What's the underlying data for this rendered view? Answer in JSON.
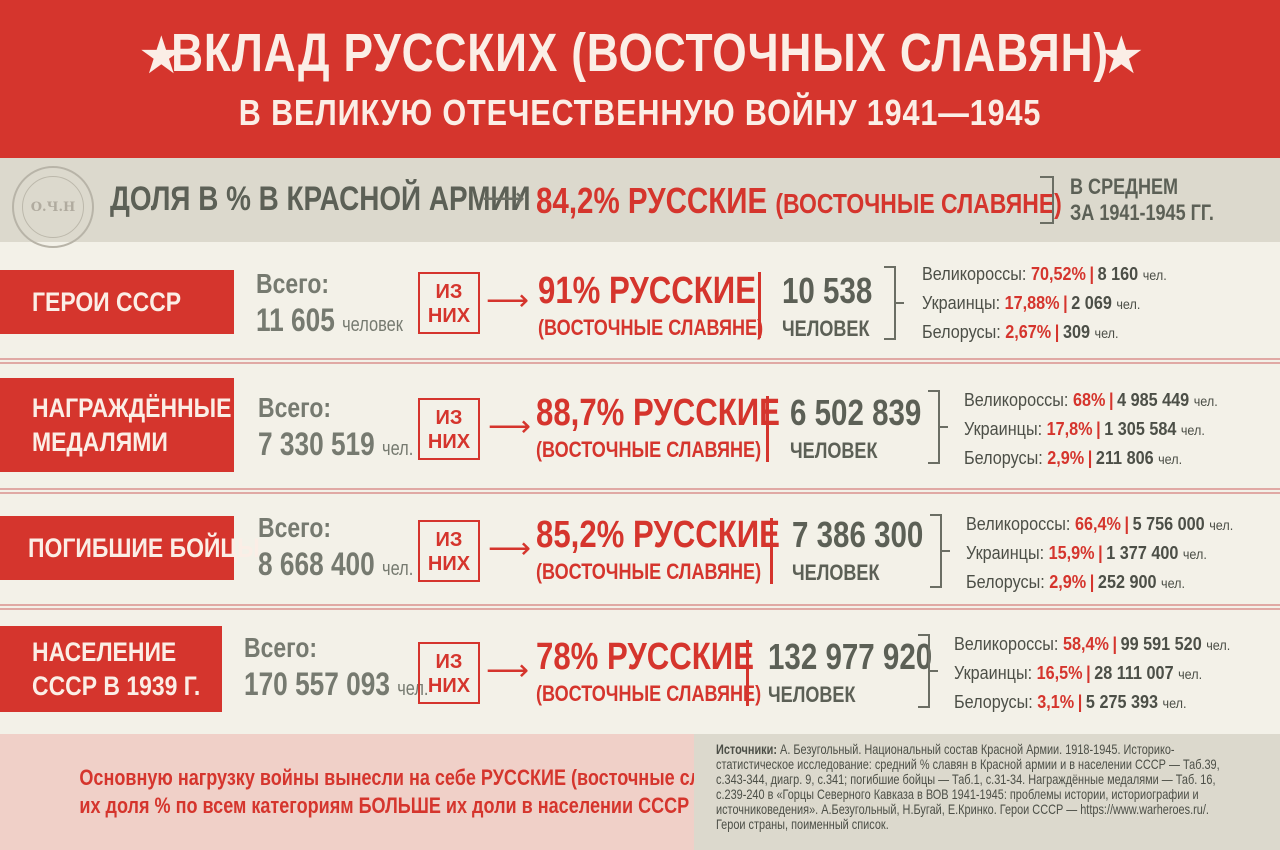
{
  "header": {
    "title_line1": "ВКЛАД РУССКИХ (ВОСТОЧНЫХ СЛАВЯН)",
    "title_line2": "В ВЕЛИКУЮ ОТЕЧЕСТВЕННУЮ ВОЙНУ 1941—1945",
    "star": "★"
  },
  "share": {
    "seal_text": "О.Ч.Н",
    "label": "ДОЛЯ В % В КРАСНОЙ АРМИИ",
    "arrow": "⟶",
    "value": "84,2% РУССКИЕ",
    "value_sub": "(ВОСТОЧНЫЕ СЛАВЯНЕ)",
    "note_line1": "В СРЕДНЕМ",
    "note_line2": "ЗА 1941-1945 ГГ."
  },
  "rows": [
    {
      "category": "ГЕРОИ СССР",
      "total_label": "Всего:",
      "total_value": "11 605",
      "total_unit": "человек",
      "of_them": "ИЗ НИХ",
      "arrow": "⟶",
      "pct": "91% РУССКИЕ",
      "pct_sub": "(ВОСТОЧНЫЕ СЛАВЯНЕ)",
      "count": "10 538",
      "count_unit": "ЧЕЛОВЕК",
      "breakdown": [
        {
          "name": "Великороссы:",
          "pct": "70,52%",
          "sep": "|",
          "num": "8 160",
          "unit": "чел."
        },
        {
          "name": "Украинцы:",
          "pct": "17,88%",
          "sep": "|",
          "num": "2 069",
          "unit": "чел."
        },
        {
          "name": "Белорусы:",
          "pct": "2,67%",
          "sep": "|",
          "num": "309",
          "unit": "чел."
        }
      ]
    },
    {
      "category_line1": "НАГРАЖДЁННЫЕ",
      "category_line2": "МЕДАЛЯМИ",
      "total_label": "Всего:",
      "total_value": "7 330 519",
      "total_unit": "чел.",
      "of_them": "ИЗ НИХ",
      "arrow": "⟶",
      "pct": "88,7% РУССКИЕ",
      "pct_sub": "(ВОСТОЧНЫЕ СЛАВЯНЕ)",
      "count": "6 502 839",
      "count_unit": "ЧЕЛОВЕК",
      "breakdown": [
        {
          "name": "Великороссы:",
          "pct": "68%",
          "sep": "|",
          "num": "4 985 449",
          "unit": "чел."
        },
        {
          "name": "Украинцы:",
          "pct": "17,8%",
          "sep": "|",
          "num": "1 305 584",
          "unit": "чел."
        },
        {
          "name": "Белорусы:",
          "pct": "2,9%",
          "sep": "|",
          "num": "211 806",
          "unit": "чел."
        }
      ]
    },
    {
      "category": "ПОГИБШИЕ БОЙЦЫ",
      "total_label": "Всего:",
      "total_value": "8 668 400",
      "total_unit": "чел.",
      "of_them": "ИЗ НИХ",
      "arrow": "⟶",
      "pct": "85,2% РУССКИЕ",
      "pct_sub": "(ВОСТОЧНЫЕ СЛАВЯНЕ)",
      "count": "7 386 300",
      "count_unit": "ЧЕЛОВЕК",
      "breakdown": [
        {
          "name": "Великороссы:",
          "pct": "66,4%",
          "sep": "|",
          "num": "5 756 000",
          "unit": "чел."
        },
        {
          "name": "Украинцы:",
          "pct": "15,9%",
          "sep": "|",
          "num": "1 377 400",
          "unit": "чел."
        },
        {
          "name": "Белорусы:",
          "pct": "2,9%",
          "sep": "|",
          "num": "252 900",
          "unit": "чел."
        }
      ]
    },
    {
      "category_line1": "НАСЕЛЕНИЕ",
      "category_line2": "СССР В 1939 Г.",
      "total_label": "Всего:",
      "total_value": "170 557 093",
      "total_unit": "чел.",
      "of_them": "ИЗ НИХ",
      "arrow": "⟶",
      "pct": "78% РУССКИЕ",
      "pct_sub": "(ВОСТОЧНЫЕ СЛАВЯНЕ)",
      "count": "132 977 920",
      "count_unit": "ЧЕЛОВЕК",
      "breakdown": [
        {
          "name": "Великороссы:",
          "pct": "58,4%",
          "sep": "|",
          "num": "99 591 520",
          "unit": "чел."
        },
        {
          "name": "Украинцы:",
          "pct": "16,5%",
          "sep": "|",
          "num": "28 111 007",
          "unit": "чел."
        },
        {
          "name": "Белорусы:",
          "pct": "3,1%",
          "sep": "|",
          "num": "5 275 393",
          "unit": "чел."
        }
      ]
    }
  ],
  "footer": {
    "conclusion_line1": "Основную нагрузку войны вынесли на себе РУССКИЕ (восточные славяне):",
    "conclusion_line2": "их доля % по всем категориям БОЛЬШЕ их доли в населении СССР",
    "sources_label": "Источники:",
    "sources_text": "А. Безугольный. Национальный состав Красной Армии. 1918-1945. Историко-статистическое исследование: средний % славян в Красной армии и в населении СССР — Таб.39, с.343-344,  диагр. 9, с.341; погибшие бойцы — Таб.1, с.31-34. Награждённые медалями — Таб. 16, с.239-240 в «Горцы Северного Кавказа в ВОВ 1941-1945: проблемы истории, историографии и источниковедения». А.Безугольный, Н.Бугай, Е.Кринко. Герои СССР — https://www.warheroes.ru/. Герои страны, поименный список."
  },
  "colors": {
    "accent_red": "#d5352d",
    "olive_gray": "#5c6056",
    "background": "#f3f1e8"
  }
}
